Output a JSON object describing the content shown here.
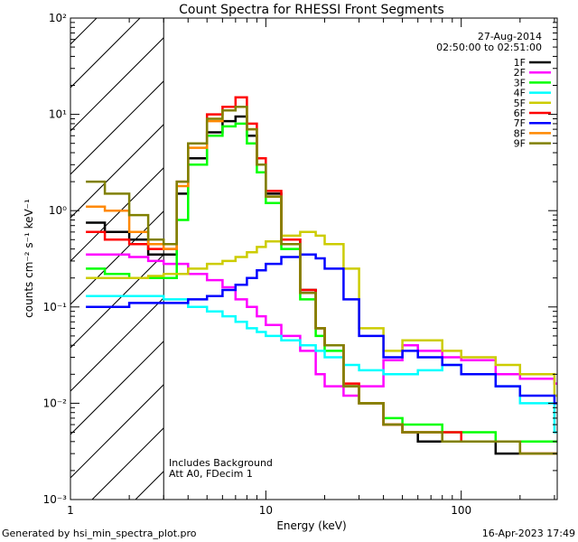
{
  "chart_data": {
    "type": "line",
    "title": "Count Spectra for RHESSI Front Segments",
    "xlabel": "Energy (keV)",
    "ylabel": "counts cm⁻² s⁻¹ keV⁻¹",
    "xscale": "log",
    "yscale": "log",
    "xlim": [
      1,
      310
    ],
    "ylim": [
      0.001,
      100
    ],
    "x_ticks": [
      {
        "value": 1,
        "label": "1"
      },
      {
        "value": 10,
        "label": "10"
      },
      {
        "value": 100,
        "label": "100"
      }
    ],
    "y_ticks": [
      {
        "value": 0.001,
        "label": "10⁻³"
      },
      {
        "value": 0.01,
        "label": "10⁻²"
      },
      {
        "value": 0.1,
        "label": "10⁻¹"
      },
      {
        "value": 1,
        "label": "10⁰"
      },
      {
        "value": 10,
        "label": "10¹"
      },
      {
        "value": 100,
        "label": "10²"
      }
    ],
    "date": "27-Aug-2014",
    "time_range": "02:50:00 to 02:51:00",
    "attenuator_cutoff_kev": 3,
    "annotations": [
      "Includes Background",
      "Att A0, FDecim 1"
    ],
    "footer_left": "Generated by hsi_min_spectra_plot.pro",
    "footer_right": "16-Apr-2023 17:49",
    "legend_position": "top-right",
    "series": [
      {
        "name": "1F",
        "color": "#000000",
        "x": [
          1.2,
          1.5,
          2,
          2.5,
          3,
          3.5,
          4,
          5,
          6,
          7,
          8,
          9,
          10,
          12,
          15,
          18,
          20,
          25,
          30,
          40,
          50,
          60,
          80,
          100,
          150,
          200,
          300
        ],
        "values": [
          0.75,
          0.6,
          0.5,
          0.35,
          0.35,
          1.5,
          3.5,
          6.5,
          8.5,
          9.5,
          6,
          3,
          1.5,
          0.5,
          0.15,
          0.06,
          0.04,
          0.015,
          0.01,
          0.006,
          0.005,
          0.004,
          0.004,
          0.004,
          0.003,
          0.003,
          0.003
        ]
      },
      {
        "name": "2F",
        "color": "#ff00ff",
        "x": [
          1.2,
          1.5,
          2,
          2.5,
          3,
          4,
          5,
          6,
          7,
          8,
          9,
          10,
          12,
          15,
          18,
          20,
          25,
          30,
          40,
          50,
          60,
          80,
          100,
          150,
          200,
          300
        ],
        "values": [
          0.35,
          0.35,
          0.33,
          0.3,
          0.28,
          0.22,
          0.19,
          0.16,
          0.12,
          0.1,
          0.08,
          0.065,
          0.05,
          0.035,
          0.02,
          0.015,
          0.012,
          0.015,
          0.028,
          0.04,
          0.035,
          0.03,
          0.028,
          0.02,
          0.018,
          0.016
        ]
      },
      {
        "name": "3F",
        "color": "#00ff00",
        "x": [
          1.2,
          1.5,
          2,
          2.5,
          3,
          3.5,
          4,
          5,
          6,
          7,
          8,
          9,
          10,
          12,
          15,
          18,
          20,
          25,
          30,
          40,
          50,
          60,
          80,
          100,
          150,
          200,
          300
        ],
        "values": [
          0.25,
          0.22,
          0.2,
          0.2,
          0.2,
          0.8,
          3,
          6,
          7.5,
          8,
          5,
          2.5,
          1.2,
          0.4,
          0.12,
          0.05,
          0.035,
          0.015,
          0.01,
          0.007,
          0.006,
          0.006,
          0.005,
          0.005,
          0.004,
          0.004,
          0.004
        ]
      },
      {
        "name": "4F",
        "color": "#00ffff",
        "x": [
          1.2,
          1.5,
          2,
          2.5,
          3,
          4,
          5,
          6,
          7,
          8,
          9,
          10,
          12,
          15,
          18,
          20,
          25,
          30,
          40,
          50,
          60,
          80,
          100,
          150,
          200,
          300
        ],
        "values": [
          0.13,
          0.13,
          0.13,
          0.13,
          0.12,
          0.1,
          0.09,
          0.08,
          0.07,
          0.06,
          0.055,
          0.05,
          0.045,
          0.04,
          0.035,
          0.03,
          0.025,
          0.022,
          0.02,
          0.02,
          0.022,
          0.025,
          0.02,
          0.015,
          0.01,
          0.005
        ]
      },
      {
        "name": "5F",
        "color": "#cccc00",
        "x": [
          1.2,
          1.5,
          2,
          2.5,
          3,
          4,
          5,
          6,
          7,
          8,
          9,
          10,
          12,
          15,
          18,
          20,
          25,
          30,
          40,
          50,
          60,
          80,
          100,
          150,
          200,
          300
        ],
        "values": [
          0.2,
          0.2,
          0.2,
          0.21,
          0.22,
          0.25,
          0.28,
          0.3,
          0.33,
          0.37,
          0.42,
          0.48,
          0.55,
          0.6,
          0.55,
          0.45,
          0.25,
          0.06,
          0.035,
          0.045,
          0.045,
          0.035,
          0.03,
          0.025,
          0.02,
          0.012
        ]
      },
      {
        "name": "6F",
        "color": "#ff0000",
        "x": [
          1.2,
          1.5,
          2,
          2.5,
          3,
          3.5,
          4,
          5,
          6,
          7,
          8,
          9,
          10,
          12,
          15,
          18,
          20,
          25,
          30,
          40,
          50,
          60,
          80,
          100,
          150,
          200,
          300
        ],
        "values": [
          0.6,
          0.5,
          0.45,
          0.4,
          0.4,
          2,
          5,
          10,
          12,
          15,
          8,
          3.5,
          1.6,
          0.5,
          0.15,
          0.06,
          0.04,
          0.016,
          0.01,
          0.006,
          0.005,
          0.005,
          0.005,
          0.004,
          0.004,
          0.003,
          0.003
        ]
      },
      {
        "name": "7F",
        "color": "#0000ff",
        "x": [
          1.2,
          1.5,
          2,
          2.5,
          3,
          4,
          5,
          6,
          7,
          8,
          9,
          10,
          12,
          15,
          18,
          20,
          25,
          30,
          40,
          50,
          60,
          80,
          100,
          150,
          200,
          300
        ],
        "values": [
          0.1,
          0.1,
          0.11,
          0.11,
          0.11,
          0.12,
          0.13,
          0.15,
          0.17,
          0.2,
          0.24,
          0.28,
          0.33,
          0.35,
          0.32,
          0.25,
          0.12,
          0.05,
          0.03,
          0.035,
          0.03,
          0.025,
          0.02,
          0.015,
          0.012,
          0.01
        ]
      },
      {
        "name": "8F",
        "color": "#ff8800",
        "x": [
          1.2,
          1.5,
          2,
          2.5,
          3,
          3.5,
          4,
          5,
          6,
          7,
          8,
          9,
          10,
          12,
          15,
          18,
          20,
          25,
          30,
          40,
          50,
          60,
          80,
          100,
          150,
          200,
          300
        ],
        "values": [
          1.1,
          1.0,
          0.6,
          0.45,
          0.4,
          1.8,
          4.5,
          8.5,
          11,
          12,
          7,
          3,
          1.4,
          0.45,
          0.14,
          0.06,
          0.04,
          0.015,
          0.01,
          0.006,
          0.005,
          0.005,
          0.004,
          0.004,
          0.004,
          0.003,
          0.003
        ]
      },
      {
        "name": "9F",
        "color": "#808000",
        "x": [
          1.2,
          1.5,
          2,
          2.5,
          3,
          3.5,
          4,
          5,
          6,
          7,
          8,
          9,
          10,
          12,
          15,
          18,
          20,
          25,
          30,
          40,
          50,
          60,
          80,
          100,
          150,
          200,
          300
        ],
        "values": [
          2,
          1.5,
          0.9,
          0.5,
          0.45,
          2,
          5,
          9,
          11,
          12,
          7,
          3,
          1.4,
          0.45,
          0.14,
          0.06,
          0.04,
          0.015,
          0.01,
          0.006,
          0.005,
          0.005,
          0.004,
          0.004,
          0.004,
          0.003,
          0.003
        ]
      }
    ]
  }
}
